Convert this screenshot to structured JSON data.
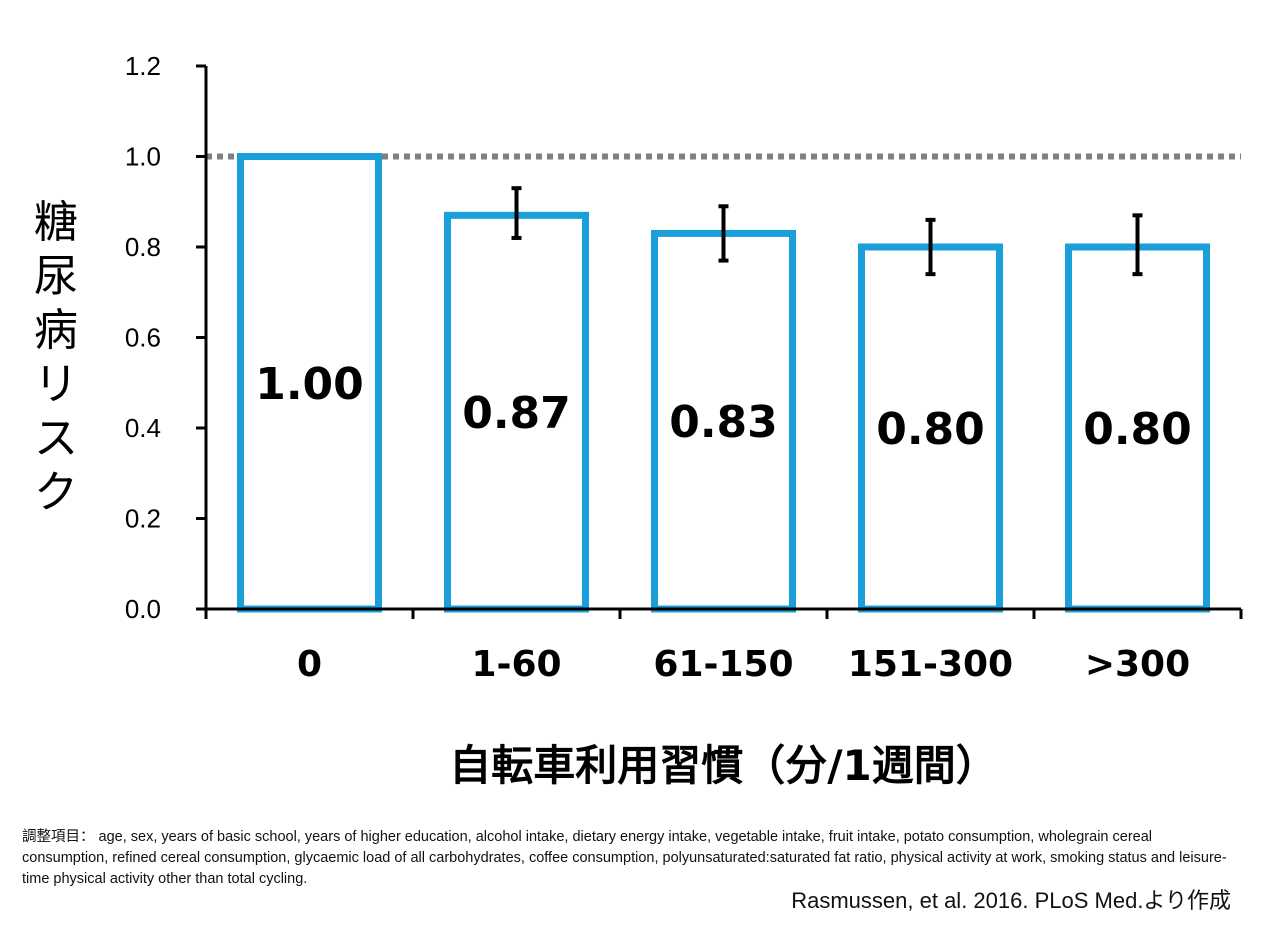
{
  "chart_data": {
    "type": "bar",
    "categories": [
      "0",
      "1-60",
      "61-150",
      "151-300",
      ">300"
    ],
    "values": [
      1.0,
      0.87,
      0.83,
      0.8,
      0.8
    ],
    "value_labels": [
      "1.00",
      "0.87",
      "0.83",
      "0.80",
      "0.80"
    ],
    "error_bars": [
      null,
      [
        0.82,
        0.93
      ],
      [
        0.77,
        0.89
      ],
      [
        0.74,
        0.86
      ],
      [
        0.74,
        0.87
      ]
    ],
    "ylim": [
      0,
      1.2
    ],
    "yticks": [
      "0.0",
      "0.2",
      "0.4",
      "0.6",
      "0.8",
      "1.0",
      "1.2"
    ],
    "ytick_values": [
      0,
      0.2,
      0.4,
      0.6,
      0.8,
      1.0,
      1.2
    ],
    "reference_line": 1.0,
    "ylabel": "糖尿病リスク",
    "xlabel": "自転車利用習慣（分/1週間）",
    "grid": false,
    "legend": "none",
    "colors": {
      "bar_outline": "#1a9fdb",
      "reference_line": "#7f7f7f",
      "error_bar": "#000000"
    }
  },
  "footnote": "調整項目： age, sex, years of basic school, years of higher education, alcohol intake, dietary energy intake, vegetable intake, fruit intake, potato consumption, wholegrain cereal consumption, refined cereal consumption, glycaemic load of all carbohydrates, coffee consumption, polyunsaturated:saturated fat ratio, physical activity at work, smoking status and leisure-time physical activity other than total cycling.",
  "citation": "Rasmussen, et al. 2016. PLoS Med.より作成"
}
